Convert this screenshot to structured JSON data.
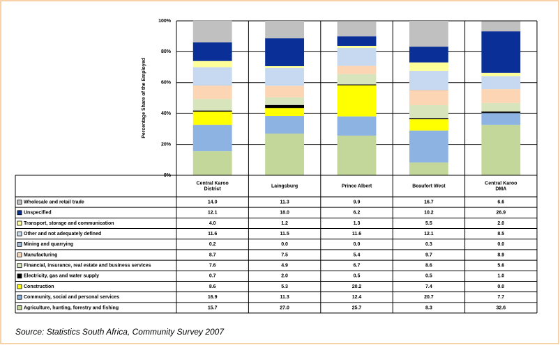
{
  "chart_data": {
    "type": "stacked_bar",
    "y_label": "Percentage Share of the Employed",
    "categories": [
      "Central Karoo District",
      "Laingsburg",
      "Prince Albert",
      "Beaufort West",
      "Central Karoo DMA"
    ],
    "series": [
      {
        "name": "Wholesale and retail trade",
        "color": "#c0c0c0",
        "values": [
          14.0,
          11.3,
          9.9,
          16.7,
          6.6
        ],
        "value_labels": [
          "14.0",
          "11.3",
          "9.9",
          "16.7",
          "6.6"
        ]
      },
      {
        "name": "Unspecified",
        "color": "#0a2f96",
        "values": [
          12.1,
          18.0,
          6.2,
          10.2,
          26.9
        ],
        "value_labels": [
          "12.1",
          "18.0",
          "6.2",
          "10.2",
          "26.9"
        ]
      },
      {
        "name": "Transport, storage and communication",
        "color": "#ffff99",
        "values": [
          4.0,
          1.2,
          1.3,
          5.5,
          2.0
        ],
        "value_labels": [
          "4.0",
          "1.2",
          "1.3",
          "5.5",
          "2.0"
        ]
      },
      {
        "name": "Other and not adequately defined",
        "color": "#c6d9f1",
        "values": [
          11.6,
          11.5,
          11.6,
          12.1,
          8.5
        ],
        "value_labels": [
          "11.6",
          "11.5",
          "11.6",
          "12.1",
          "8.5"
        ]
      },
      {
        "name": "Mining and quarrying",
        "color": "#9bbbd9",
        "values": [
          0.2,
          0.0,
          0.0,
          0.3,
          0.0
        ],
        "value_labels": [
          "0.2",
          "0.0",
          "0.0",
          "0.3",
          "0.0"
        ]
      },
      {
        "name": "Manufacturing",
        "color": "#fcd5b4",
        "values": [
          8.7,
          7.5,
          5.4,
          9.7,
          8.9
        ],
        "value_labels": [
          "8.7",
          "7.5",
          "5.4",
          "9.7",
          "8.9"
        ]
      },
      {
        "name": "Financial, insurance, real estate and business services",
        "color": "#d8e4bc",
        "values": [
          7.6,
          4.9,
          6.7,
          8.6,
          5.6
        ],
        "value_labels": [
          "7.6",
          "4.9",
          "6.7",
          "8.6",
          "5.6"
        ]
      },
      {
        "name": "Electricity, gas and water supply",
        "color": "#000000",
        "values": [
          0.7,
          2.0,
          0.5,
          0.5,
          1.0
        ],
        "value_labels": [
          "0.7",
          "2.0",
          "0.5",
          "0.5",
          "1.0"
        ]
      },
      {
        "name": "Construction",
        "color": "#ffff00",
        "values": [
          8.6,
          5.3,
          20.2,
          7.4,
          0.0
        ],
        "value_labels": [
          "8.6",
          "5.3",
          "20.2",
          "7.4",
          "0.0"
        ]
      },
      {
        "name": "Community, social and personal services",
        "color": "#8db3e2",
        "values": [
          16.9,
          11.3,
          12.4,
          20.7,
          7.7
        ],
        "value_labels": [
          "16.9",
          "11.3",
          "12.4",
          "20.7",
          "7.7"
        ]
      },
      {
        "name": "Agriculture, hunting, forestry and fishing",
        "color": "#c4d79b",
        "values": [
          15.7,
          27.0,
          25.7,
          8.3,
          32.6
        ],
        "value_labels": [
          "15.7",
          "27.0",
          "25.7",
          "8.3",
          "32.6"
        ]
      }
    ],
    "ylim": [
      0,
      100
    ],
    "yticks": [
      {
        "value": 0,
        "label": "0%"
      },
      {
        "value": 20,
        "label": "20%"
      },
      {
        "value": 40,
        "label": "40%"
      },
      {
        "value": 60,
        "label": "60%"
      },
      {
        "value": 80,
        "label": "80%"
      },
      {
        "value": 100,
        "label": "100%"
      }
    ],
    "grid": true,
    "source": "Source: Statistics South Africa, Community Survey 2007"
  }
}
